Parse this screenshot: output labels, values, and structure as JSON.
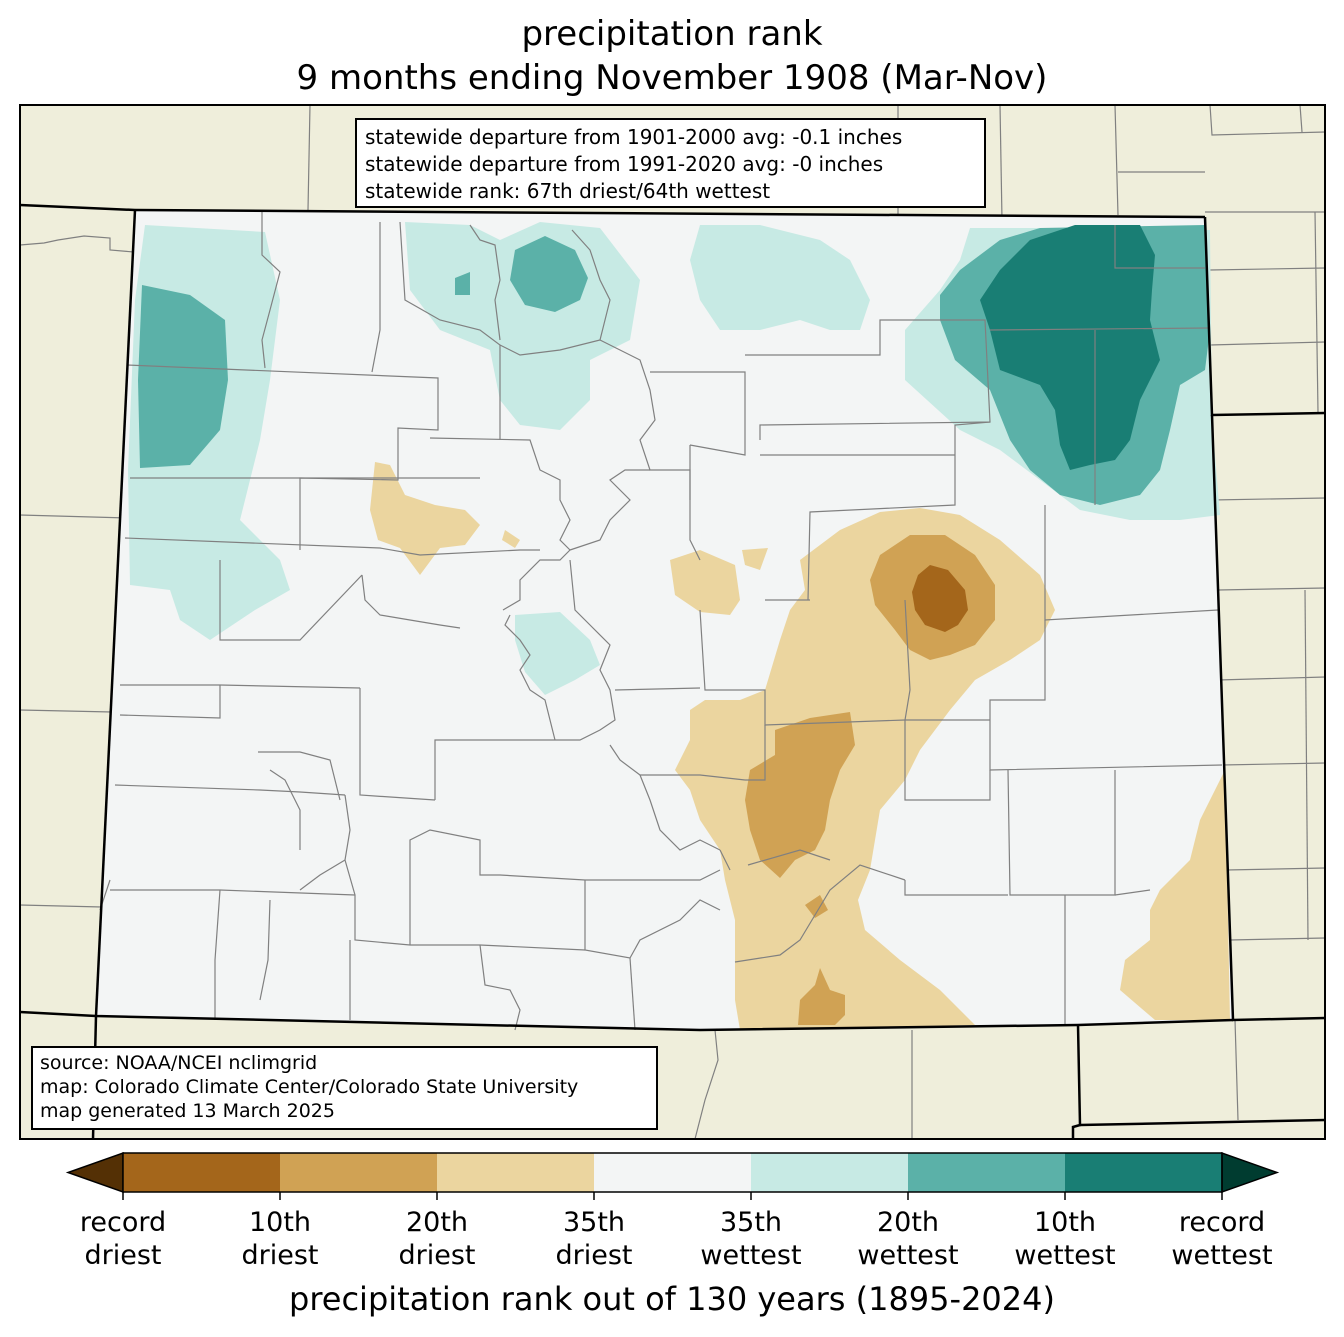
{
  "title": {
    "line1": "precipitation rank",
    "line2": "9 months ending November 1908 (Mar-Nov)"
  },
  "stats": {
    "line1": "statewide departure from 1901-2000 avg: -0.1 inches",
    "line2": "statewide departure from 1991-2020 avg: -0 inches",
    "line3": "statewide rank: 67th driest/64th wettest"
  },
  "source": {
    "line1": "source: NOAA/NCEI nclimgrid",
    "line2": "map: Colorado Climate Center/Colorado State University",
    "line3": "map generated 13 March 2025"
  },
  "legend": {
    "title": "precipitation rank out of 130 years (1895-2024)",
    "ticks": [
      {
        "line1": "record",
        "line2": "driest"
      },
      {
        "line1": "10th",
        "line2": "driest"
      },
      {
        "line1": "20th",
        "line2": "driest"
      },
      {
        "line1": "35th",
        "line2": "driest"
      },
      {
        "line1": "35th",
        "line2": "wettest"
      },
      {
        "line1": "20th",
        "line2": "wettest"
      },
      {
        "line1": "10th",
        "line2": "wettest"
      },
      {
        "line1": "record",
        "line2": "wettest"
      }
    ],
    "colors": {
      "extend_dry": "#543005",
      "record_to_10th_driest": "#a4661b",
      "tenth_to_20th_driest": "#d0a254",
      "twentieth_to_35th_driest": "#ebd59f",
      "near_normal": "#f3f5f5",
      "thirty_fifth_to_20th_wettest": "#c7eae4",
      "twentieth_to_10th_wettest": "#5bb1a8",
      "tenth_to_record_wettest": "#197e74",
      "extend_wet": "#003c30"
    }
  },
  "colors": {
    "land_background": "#efeedb",
    "county_lines": "#808080",
    "state_lines": "#000000"
  }
}
